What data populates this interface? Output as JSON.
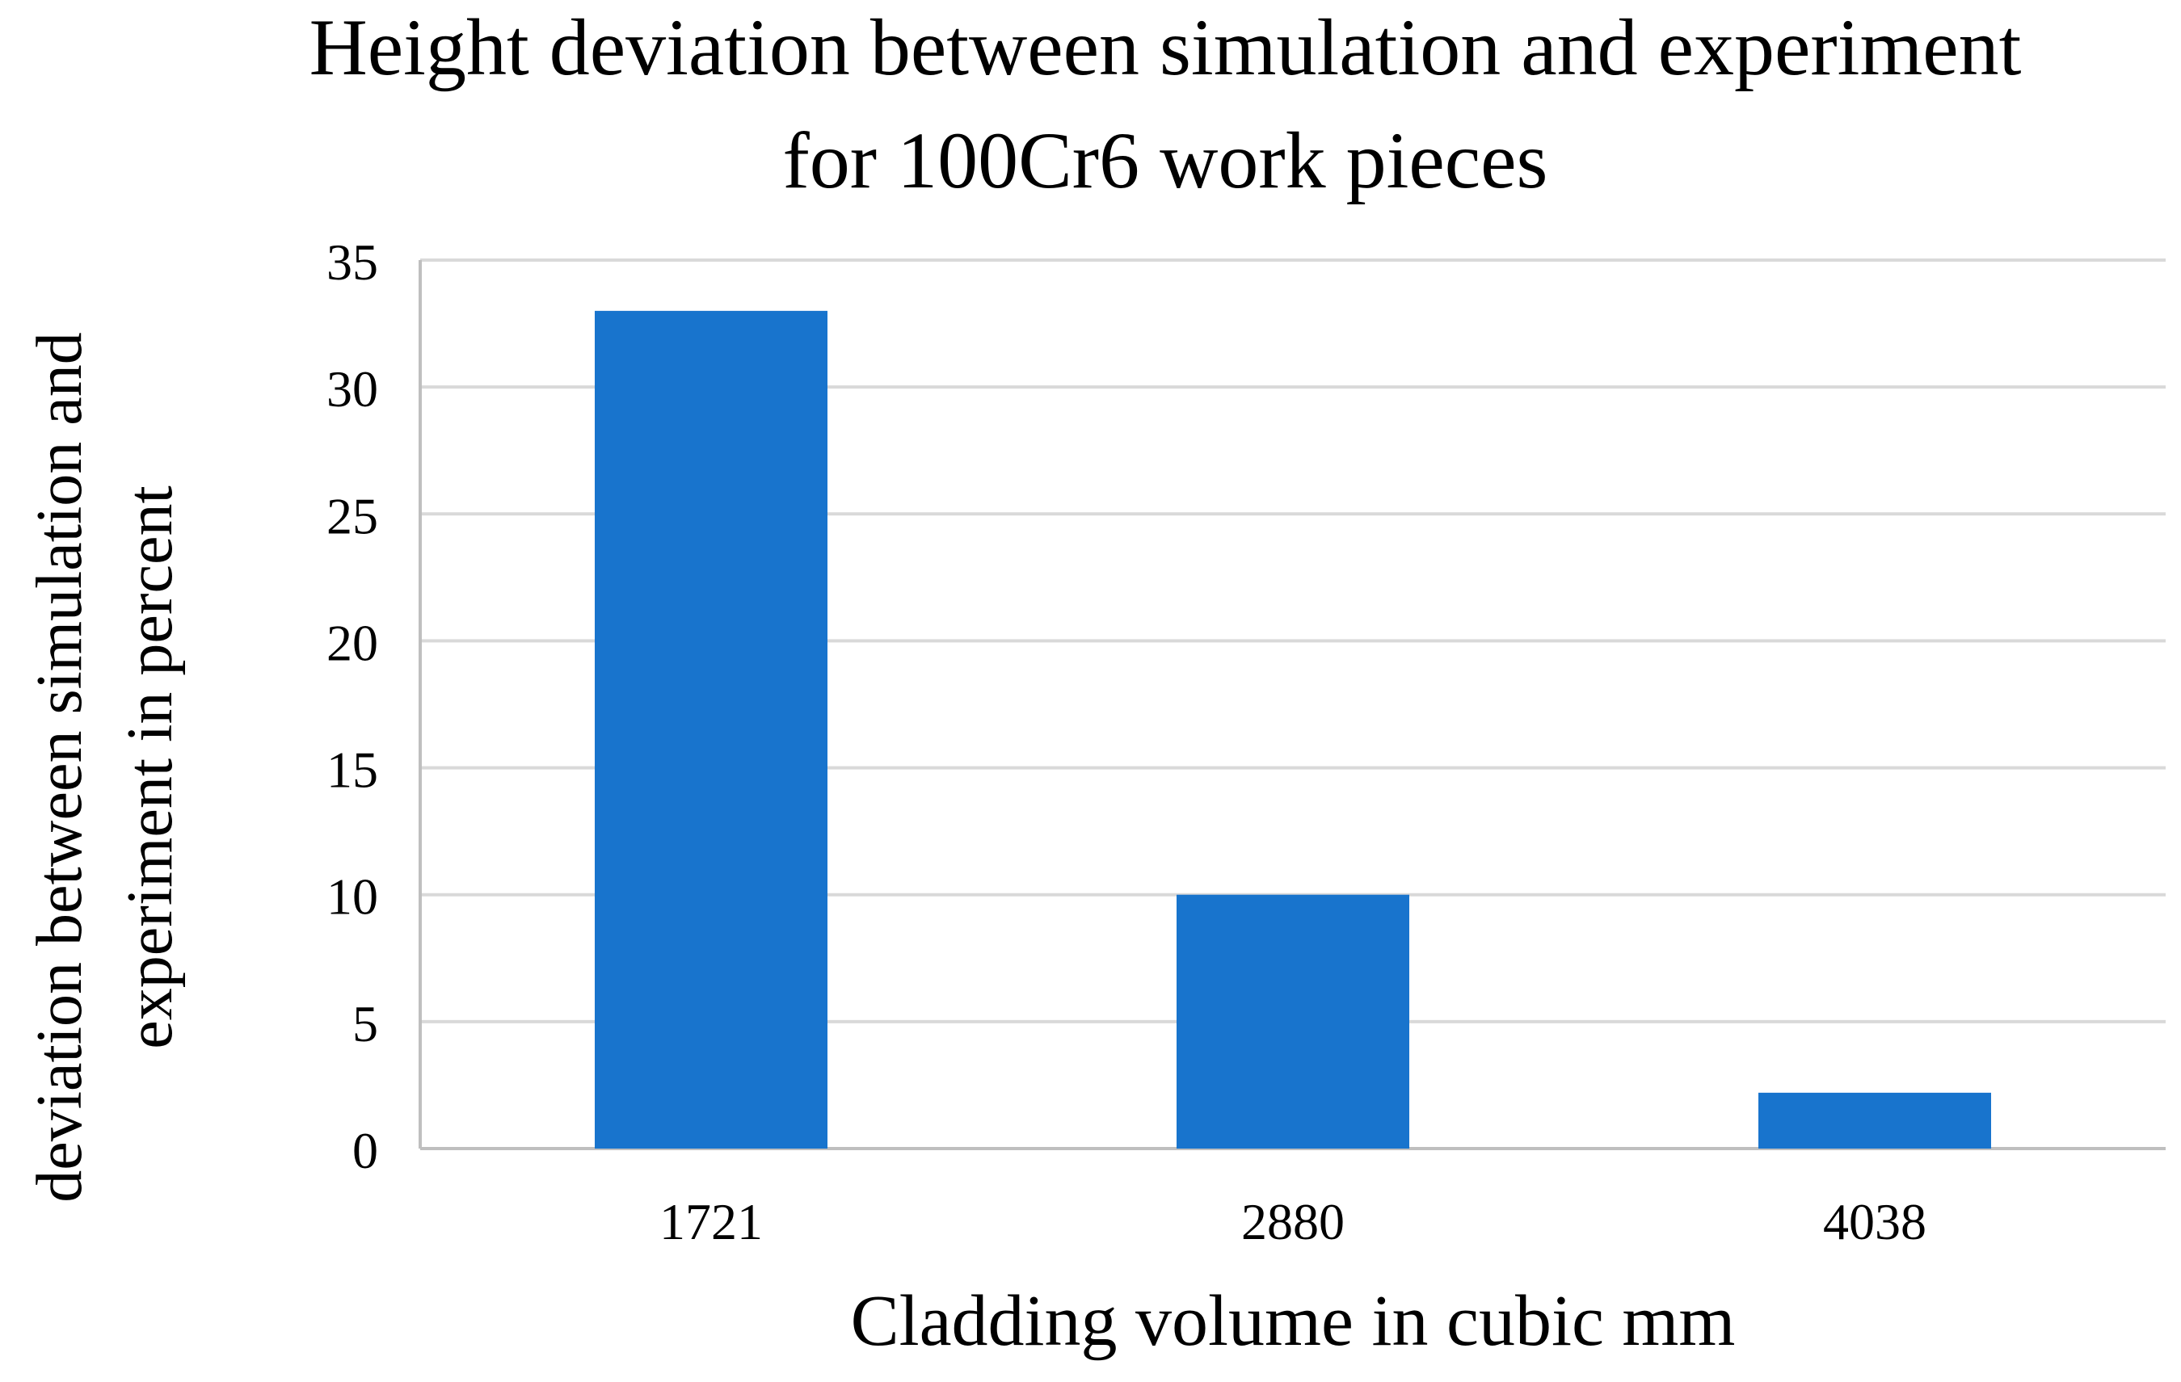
{
  "chart_data": {
    "type": "bar",
    "title_lines": [
      "Height deviation between simulation and experiment",
      "for 100Cr6 work pieces"
    ],
    "xlabel": "Cladding volume in cubic mm",
    "ylabel_lines": [
      "deviation between simulation and",
      "experiment  in percent"
    ],
    "categories": [
      "1721",
      "2880",
      "4038"
    ],
    "values": [
      33,
      10,
      2.2
    ],
    "ylim": [
      0,
      35
    ],
    "yticks": [
      "0",
      "5",
      "10",
      "15",
      "20",
      "25",
      "30",
      "35"
    ],
    "grid": true,
    "legend": "none",
    "bar_color": "#1874CD",
    "grid_color": "#D9D9D9",
    "axis_color": "#BFBFBF"
  }
}
